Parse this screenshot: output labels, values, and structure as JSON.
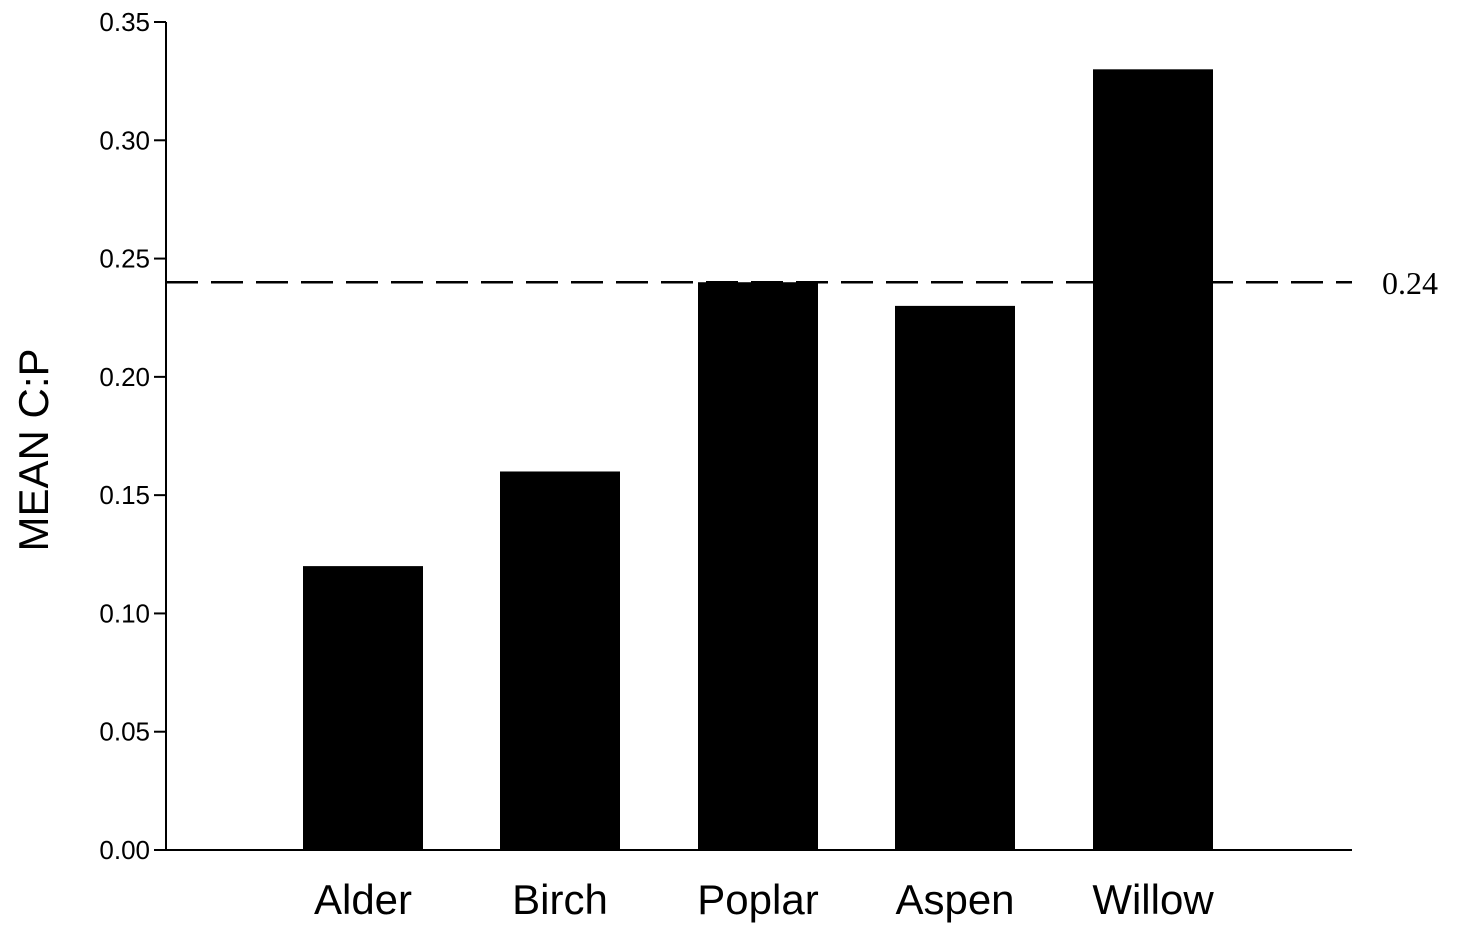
{
  "chart_data": {
    "type": "bar",
    "categories": [
      "Alder",
      "Birch",
      "Poplar",
      "Aspen",
      "Willow"
    ],
    "series": [
      {
        "values": [
          0.12,
          0.16,
          0.24,
          0.23,
          0.33
        ],
        "color": "#000000"
      }
    ],
    "title": "",
    "xlabel": "",
    "ylabel": "MEAN C:P",
    "ylim": [
      0,
      0.35
    ],
    "yticks": [
      0.0,
      0.05,
      0.1,
      0.15,
      0.2,
      0.25,
      0.3,
      0.35
    ],
    "ytick_labels": [
      "0.00",
      "0.05",
      "0.10",
      "0.15",
      "0.20",
      "0.25",
      "0.30",
      "0.35"
    ],
    "grid": false,
    "legend": "none",
    "reference_line": {
      "value": 0.24,
      "style": "dashed",
      "label": "0.24"
    }
  }
}
